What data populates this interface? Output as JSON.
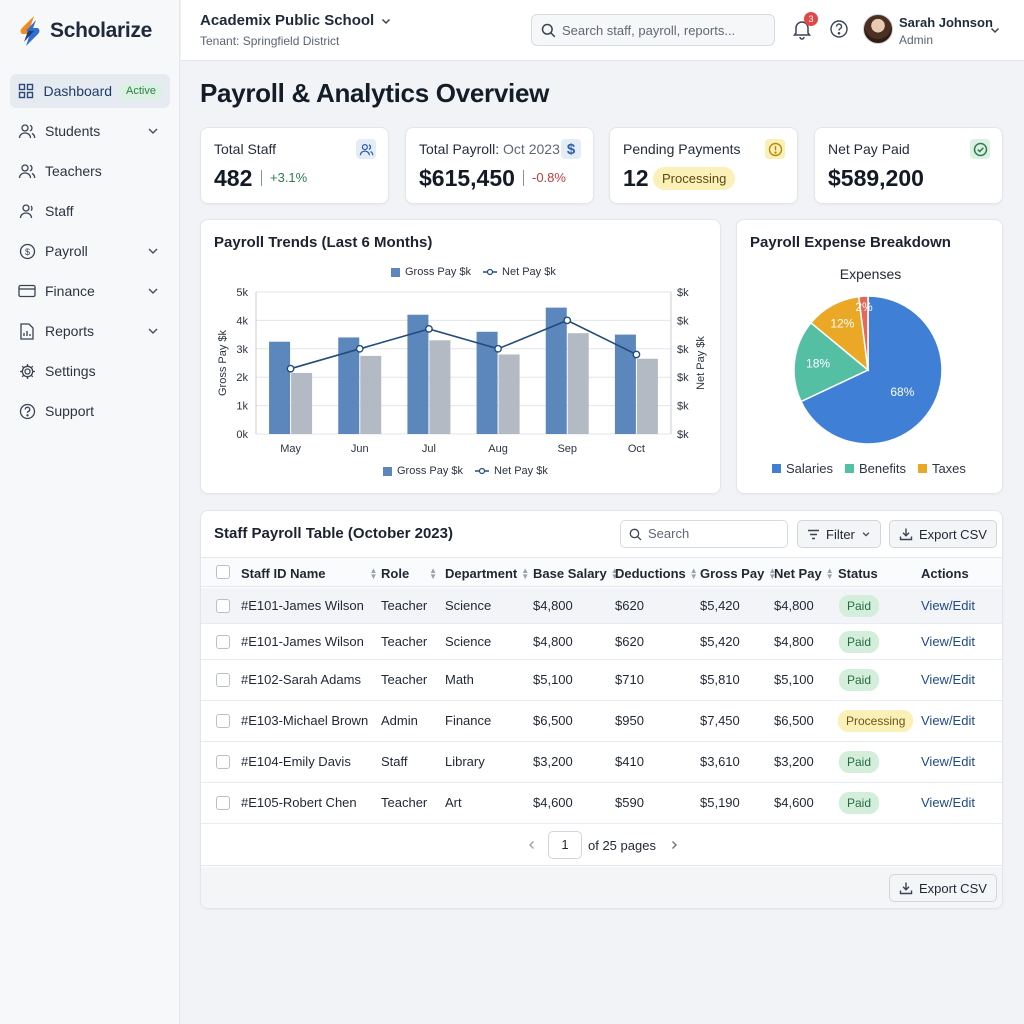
{
  "app": {
    "name": "Scholarize"
  },
  "colors": {
    "primary_blue": "#5b87bd",
    "gray_bar": "#b3bac4",
    "pie_salaries": "#3f7fd6",
    "pie_benefits": "#55bfa3",
    "pie_taxes": "#eaa826",
    "pie_other": "#e0695b",
    "success": "#2e7d4f",
    "danger": "#c23b3b"
  },
  "sidebar": {
    "items": [
      {
        "label": "Dashboard",
        "icon": "grid-icon",
        "badge": "Active"
      },
      {
        "label": "Students",
        "icon": "users-icon",
        "has_chevron": true
      },
      {
        "label": "Teachers",
        "icon": "users-icon"
      },
      {
        "label": "Staff",
        "icon": "user-icon"
      },
      {
        "label": "Payroll",
        "icon": "dollar-circle-icon",
        "has_chevron": true
      },
      {
        "label": "Finance",
        "icon": "card-icon",
        "has_chevron": true
      },
      {
        "label": "Reports",
        "icon": "report-icon",
        "has_chevron": true
      },
      {
        "label": "Settings",
        "icon": "gear-icon"
      },
      {
        "label": "Support",
        "icon": "help-circle-icon"
      }
    ]
  },
  "header": {
    "school": "Academix Public School",
    "tenant": "Tenant: Springfield District",
    "search_placeholder": "Search staff, payroll, reports...",
    "notification_count": "3",
    "user_name": "Sarah Johnson",
    "user_role": "Admin"
  },
  "page": {
    "title": "Payroll & Analytics Overview"
  },
  "kpis": {
    "total_staff": {
      "label": "Total Staff",
      "value": "482",
      "delta": "+3.1%"
    },
    "total_payroll": {
      "label": "Total Payroll:",
      "period": "Oct 2023",
      "value": "$615,450",
      "delta": "-0.8%"
    },
    "pending": {
      "label": "Pending Payments",
      "value": "12",
      "status": "Processing"
    },
    "net_paid": {
      "label": "Net Pay Paid",
      "value": "$589,200"
    }
  },
  "trends": {
    "title": "Payroll Trends (Last 6 Months)",
    "legend_gross": "Gross Pay $k",
    "legend_net": "Net Pay $k"
  },
  "breakdown": {
    "title": "Payroll Expense Breakdown",
    "chart_title": "Expenses",
    "legend": [
      "Salaries",
      "Benefits",
      "Taxes"
    ]
  },
  "chart_data": [
    {
      "type": "bar",
      "title": "Payroll Trends (Last 6 Months)",
      "categories": [
        "May",
        "Jun",
        "Jul",
        "Aug",
        "Sep",
        "Oct"
      ],
      "series": [
        {
          "name": "Gross Pay $k",
          "type": "bar",
          "values": [
            3.25,
            3.4,
            4.2,
            3.6,
            4.45,
            3.5
          ]
        },
        {
          "name": "Gross Pay $k (light)",
          "type": "bar",
          "values": [
            2.15,
            2.75,
            3.3,
            2.8,
            3.55,
            2.65
          ]
        },
        {
          "name": "Net Pay $k",
          "type": "line",
          "values": [
            2.3,
            3.0,
            3.7,
            3.0,
            4.0,
            2.8
          ]
        }
      ],
      "ylabel": "Gross Pay $k",
      "y2label": "Net Pay $k",
      "yticks": [
        "0k",
        "1k",
        "2k",
        "3k",
        "4k",
        "5k"
      ],
      "y2ticks": [
        "$k",
        "$k",
        "$k",
        "$k",
        "$k",
        "$k"
      ],
      "ylim": [
        0,
        5
      ],
      "grid": true,
      "legend_position": "top"
    },
    {
      "type": "pie",
      "title": "Expenses",
      "labels": [
        "Salaries",
        "Benefits",
        "Taxes",
        "Other"
      ],
      "values": [
        68,
        18,
        12,
        2
      ],
      "value_labels": [
        "68%",
        "18%",
        "12%",
        "2%"
      ],
      "legend_position": "bottom"
    }
  ],
  "table": {
    "title": "Staff Payroll Table (October 2023)",
    "search_placeholder": "Search",
    "filter_label": "Filter",
    "export_label": "Export CSV",
    "columns": [
      "Staff ID Name",
      "Role",
      "Department",
      "Base Salary",
      "Deductions",
      "Gross Pay",
      "Net Pay",
      "Status",
      "Actions"
    ],
    "rows": [
      {
        "id_name": "#E101-James Wilson",
        "role": "Teacher",
        "department": "Science",
        "base": "$4,800",
        "deductions": "$620",
        "gross": "$5,420",
        "net": "$4,800",
        "status": "Paid",
        "action": "View/Edit"
      },
      {
        "id_name": "#E101-James Wilson",
        "role": "Teacher",
        "department": "Science",
        "base": "$4,800",
        "deductions": "$620",
        "gross": "$5,420",
        "net": "$4,800",
        "status": "Paid",
        "action": "View/Edit"
      },
      {
        "id_name": "#E102-Sarah Adams",
        "role": "Teacher",
        "department": "Math",
        "base": "$5,100",
        "deductions": "$710",
        "gross": "$5,810",
        "net": "$5,100",
        "status": "Paid",
        "action": "View/Edit"
      },
      {
        "id_name": "#E103-Michael Brown",
        "role": "Admin",
        "department": "Finance",
        "base": "$6,500",
        "deductions": "$950",
        "gross": "$7,450",
        "net": "$6,500",
        "status": "Processing",
        "action": "View/Edit"
      },
      {
        "id_name": "#E104-Emily Davis",
        "role": "Staff",
        "department": "Library",
        "base": "$3,200",
        "deductions": "$410",
        "gross": "$3,610",
        "net": "$3,200",
        "status": "Paid",
        "action": "View/Edit"
      },
      {
        "id_name": "#E105-Robert Chen",
        "role": "Teacher",
        "department": "Art",
        "base": "$4,600",
        "deductions": "$590",
        "gross": "$5,190",
        "net": "$4,600",
        "status": "Paid",
        "action": "View/Edit"
      }
    ],
    "pagination": {
      "current": "1",
      "of_label": "of 25 pages"
    },
    "footer_export_label": "Export CSV"
  }
}
